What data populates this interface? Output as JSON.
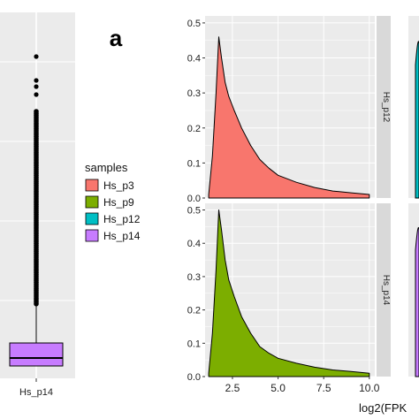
{
  "panel_label": "a",
  "legend": {
    "title": "samples",
    "items": [
      {
        "label": "Hs_p3",
        "color": "#F8766D"
      },
      {
        "label": "Hs_p9",
        "color": "#7CAE00"
      },
      {
        "label": "Hs_p12",
        "color": "#00BFC4"
      },
      {
        "label": "Hs_p14",
        "color": "#C77CFF"
      }
    ]
  },
  "colors": {
    "panel_bg": "#EBEBEB",
    "strip_bg": "#D9D9D9",
    "grid": "#FFFFFF",
    "outline": "#000000"
  },
  "chart_data": [
    {
      "type": "box",
      "category_label": "Hs_p14",
      "fill": "#C77CFF",
      "note": "partially visible (cropped at left)",
      "outliers_top": true
    },
    {
      "type": "area",
      "kind": "density",
      "xlabel": "log2(FPK",
      "ylabel": "",
      "xlim": [
        1.0,
        10.3
      ],
      "ylim": [
        0,
        0.52
      ],
      "x_ticks": [
        "2.5",
        "5.0",
        "7.5",
        "10.0"
      ],
      "y_ticks": [
        "0.0",
        "0.1",
        "0.2",
        "0.3",
        "0.4",
        "0.5"
      ],
      "facets": [
        {
          "strip": "Hs_p12",
          "series": "Hs_p3",
          "color": "#F8766D",
          "x": [
            1.2,
            1.4,
            1.6,
            1.75,
            1.9,
            2.1,
            2.3,
            2.6,
            3.0,
            3.5,
            4.0,
            4.5,
            5.0,
            6.0,
            7.0,
            8.0,
            9.0,
            10.0
          ],
          "y": [
            0.01,
            0.12,
            0.3,
            0.46,
            0.4,
            0.33,
            0.29,
            0.25,
            0.2,
            0.15,
            0.11,
            0.085,
            0.065,
            0.045,
            0.03,
            0.02,
            0.015,
            0.01
          ]
        },
        {
          "strip": "Hs_p14",
          "series": "Hs_p9",
          "color": "#7CAE00",
          "x": [
            1.2,
            1.4,
            1.6,
            1.75,
            1.9,
            2.1,
            2.3,
            2.6,
            3.0,
            3.5,
            4.0,
            4.5,
            5.0,
            6.0,
            7.0,
            8.0,
            9.0,
            10.0
          ],
          "y": [
            0.01,
            0.13,
            0.32,
            0.5,
            0.44,
            0.35,
            0.29,
            0.24,
            0.18,
            0.13,
            0.09,
            0.07,
            0.055,
            0.04,
            0.028,
            0.02,
            0.015,
            0.01
          ]
        }
      ]
    }
  ]
}
